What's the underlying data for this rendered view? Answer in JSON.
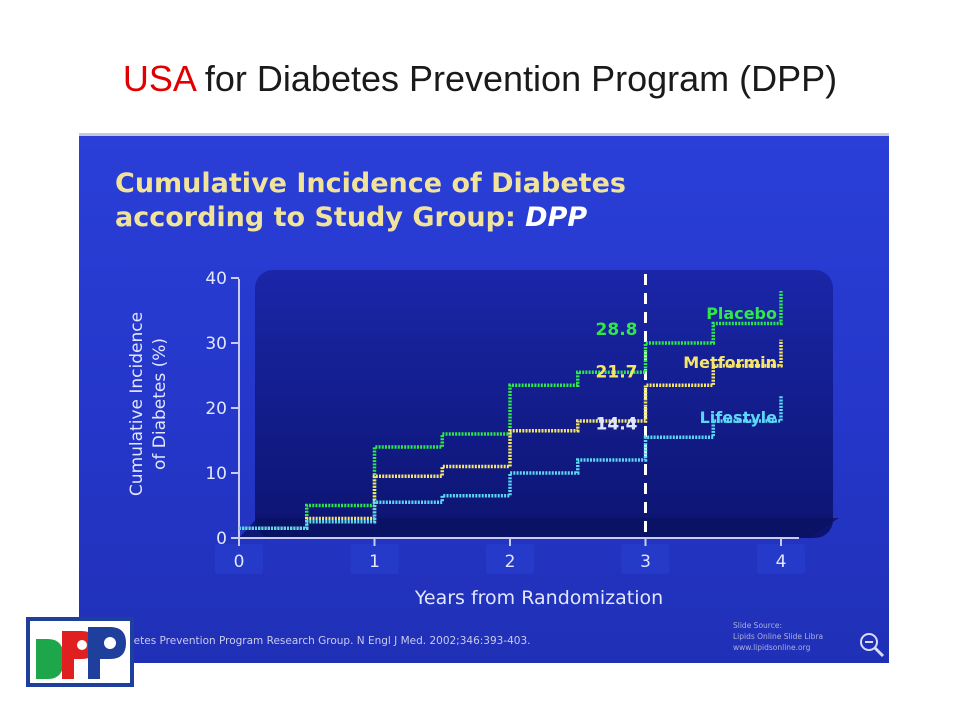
{
  "slide": {
    "title_accent": "USA",
    "title_rest": " for Diabetes Prevention Program (DPP)"
  },
  "logo": {
    "text": "DPP"
  },
  "chart_data": {
    "type": "line",
    "step": true,
    "title_line1": "Cumulative Incidence of Diabetes",
    "title_line2_prefix": "according to Study Group: ",
    "title_line2_em": "DPP",
    "xlabel": "Years from Randomization",
    "ylabel_line1": "Cumulative Incidence",
    "ylabel_line2": "of Diabetes (%)",
    "xlim": [
      0,
      4
    ],
    "ylim": [
      0,
      40
    ],
    "xticks": [
      0,
      1,
      2,
      3,
      4
    ],
    "yticks": [
      0,
      10,
      20,
      30,
      40
    ],
    "reference_line_x": 3,
    "series": [
      {
        "name": "Placebo",
        "color": "#2ee84a",
        "x": [
          0,
          0.5,
          1,
          1.5,
          2,
          2.5,
          3,
          3.5,
          4
        ],
        "values": [
          1.5,
          5,
          14,
          16,
          23.5,
          25.5,
          30,
          33,
          38
        ]
      },
      {
        "name": "Metformin",
        "color": "#f5e66a",
        "x": [
          0,
          0.5,
          1,
          1.5,
          2,
          2.5,
          3,
          3.5,
          4
        ],
        "values": [
          1.5,
          3,
          9.5,
          11,
          16.5,
          18,
          23.5,
          26.5,
          30.5
        ]
      },
      {
        "name": "Lifestyle",
        "color": "#5ad8f5",
        "x": [
          0,
          0.5,
          1,
          1.5,
          2,
          2.5,
          3,
          3.5,
          4
        ],
        "values": [
          1.5,
          2.5,
          5.5,
          6.5,
          10,
          12,
          15.5,
          18,
          22
        ]
      }
    ],
    "data_labels": [
      {
        "text": "28.8",
        "color": "#2ee84a"
      },
      {
        "text": "21.7",
        "color": "#f5e66a"
      },
      {
        "text": "14.4",
        "color": "#dfe6ff"
      }
    ],
    "citation": "betes Prevention Program Research Group. N Engl J Med. 2002;346:393-403.",
    "source_line1": "Slide Source:",
    "source_line2": "Lipids Online Slide Libra",
    "source_line3": "www.lipidsonline.org"
  }
}
